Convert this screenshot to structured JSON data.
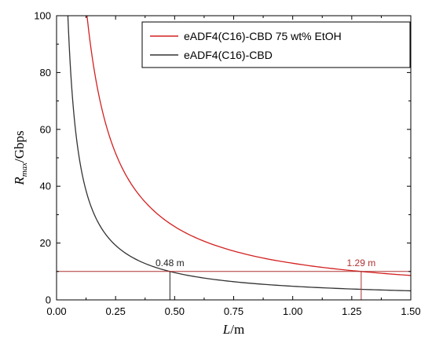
{
  "chart_data": {
    "type": "line",
    "xlabel": {
      "main": "L",
      "unit": "/m"
    },
    "ylabel": {
      "main": "R",
      "sub": "max",
      "unit": "/Gbps"
    },
    "xlim": [
      0,
      1.5
    ],
    "ylim": [
      0,
      100
    ],
    "xticks": [
      0.0,
      0.25,
      0.5,
      0.75,
      1.0,
      1.25,
      1.5
    ],
    "xtick_labels": [
      "0.00",
      "0.25",
      "0.50",
      "0.75",
      "1.00",
      "1.25",
      "1.50"
    ],
    "yticks": [
      0,
      20,
      40,
      60,
      80,
      100
    ],
    "ytick_labels": [
      "0",
      "20",
      "40",
      "60",
      "80",
      "100"
    ],
    "grid": false,
    "legend_position": "top-right",
    "series": [
      {
        "name": "eADF4(C16)-CBD 75 wt% EtOH",
        "color": "#d42020",
        "x": [
          0.129,
          0.15,
          0.2,
          0.25,
          0.3,
          0.4,
          0.5,
          0.6,
          0.75,
          0.9,
          1.0,
          1.1,
          1.29,
          1.4,
          1.5
        ],
        "y": [
          100,
          86,
          64.5,
          51.6,
          43,
          32.3,
          25.8,
          21.5,
          17.2,
          14.3,
          12.9,
          11.7,
          10,
          9.2,
          8.6
        ]
      },
      {
        "name": "eADF4(C16)-CBD",
        "color": "#333333",
        "x": [
          0.048,
          0.06,
          0.08,
          0.1,
          0.15,
          0.2,
          0.25,
          0.3,
          0.4,
          0.48,
          0.6,
          0.75,
          1.0,
          1.25,
          1.5
        ],
        "y": [
          100,
          80,
          60,
          48,
          32,
          24,
          19.2,
          16,
          12,
          10,
          8,
          6.4,
          4.8,
          3.84,
          3.2
        ]
      }
    ],
    "reference_lines": {
      "y": 10,
      "verticals": [
        {
          "x": 0.48,
          "label": "0.48 m",
          "color": "#222222"
        },
        {
          "x": 1.29,
          "label": "1.29 m",
          "color": "#b03030"
        }
      ]
    }
  }
}
